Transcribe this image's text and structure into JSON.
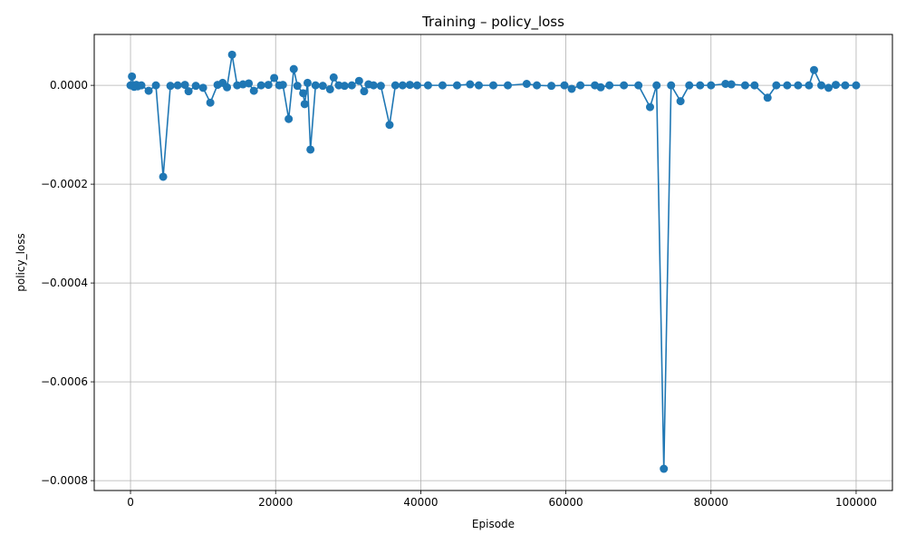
{
  "chart_data": {
    "type": "line",
    "title": "Training – policy_loss",
    "xlabel": "Episode",
    "ylabel": "policy_loss",
    "xlim": [
      -5000,
      105000
    ],
    "ylim": [
      -0.00082,
      0.000103
    ],
    "x_ticks": [
      0,
      20000,
      40000,
      60000,
      80000,
      100000
    ],
    "x_tick_labels": [
      "0",
      "20000",
      "40000",
      "60000",
      "80000",
      "100000"
    ],
    "y_ticks": [
      0.0,
      -0.0002,
      -0.0004,
      -0.0006,
      -0.0008
    ],
    "y_tick_labels": [
      "0.0000",
      "−0.0002",
      "−0.0004",
      "−0.0006",
      "−0.0008"
    ],
    "grid": true,
    "color": "#1f77b4",
    "marker": "circle",
    "series": [
      {
        "x": [
          0,
          200,
          500,
          800,
          1000,
          1500,
          2500,
          3500,
          4500,
          5500,
          6500,
          7500,
          8000,
          9000,
          10000,
          11000,
          12000,
          12700,
          13300,
          14000,
          14700,
          15500,
          16300,
          17000,
          18000,
          19000,
          19800,
          20500,
          21000,
          21800,
          22500,
          23000,
          23800,
          24000,
          24400,
          24800,
          25500,
          26500,
          27500,
          28000,
          28700,
          29500,
          30500,
          31500,
          32200,
          32800,
          33500,
          34500,
          35700,
          36500,
          37500,
          38500,
          39500,
          41000,
          43000,
          45000,
          46800,
          48000,
          50000,
          52000,
          54600,
          56000,
          58000,
          59800,
          60800,
          62000,
          64000,
          64800,
          66000,
          68000,
          70000,
          71600,
          72500,
          73500,
          74500,
          75800,
          77000,
          78500,
          80000,
          82000,
          82800,
          84700,
          86000,
          87800,
          89000,
          90500,
          92000,
          93500,
          94200,
          95200,
          96200,
          97200,
          98500,
          100000
        ],
        "y": [
          0.0,
          1.8e-05,
          -3e-06,
          1e-06,
          -2e-06,
          0.0,
          -1.1e-05,
          0.0,
          -0.000185,
          -1e-06,
          0.0,
          1e-06,
          -1.2e-05,
          -1e-06,
          -5e-06,
          -3.5e-05,
          1e-06,
          5e-06,
          -4e-06,
          6.2e-05,
          0.0,
          2e-06,
          4e-06,
          -1.1e-05,
          0.0,
          1e-06,
          1.5e-05,
          0.0,
          1e-06,
          -6.8e-05,
          3.3e-05,
          -1e-06,
          -1.6e-05,
          -3.8e-05,
          5e-06,
          -0.00013,
          0.0,
          -1e-06,
          -8e-06,
          1.6e-05,
          0.0,
          -1e-06,
          0.0,
          9e-06,
          -1.2e-05,
          2e-06,
          0.0,
          -1e-06,
          -8e-05,
          0.0,
          0.0,
          1e-06,
          0.0,
          0.0,
          0.0,
          0.0,
          2e-06,
          0.0,
          0.0,
          0.0,
          3e-06,
          0.0,
          -1e-06,
          0.0,
          -7e-06,
          0.0,
          0.0,
          -4e-06,
          0.0,
          0.0,
          0.0,
          -4.4e-05,
          0.0,
          -0.000776,
          0.0,
          -3.2e-05,
          0.0,
          0.0,
          0.0,
          3e-06,
          2e-06,
          0.0,
          0.0,
          -2.5e-05,
          0.0,
          0.0,
          0.0,
          0.0,
          3.1e-05,
          0.0,
          -5e-06,
          1e-06,
          0.0,
          0.0
        ]
      }
    ]
  }
}
